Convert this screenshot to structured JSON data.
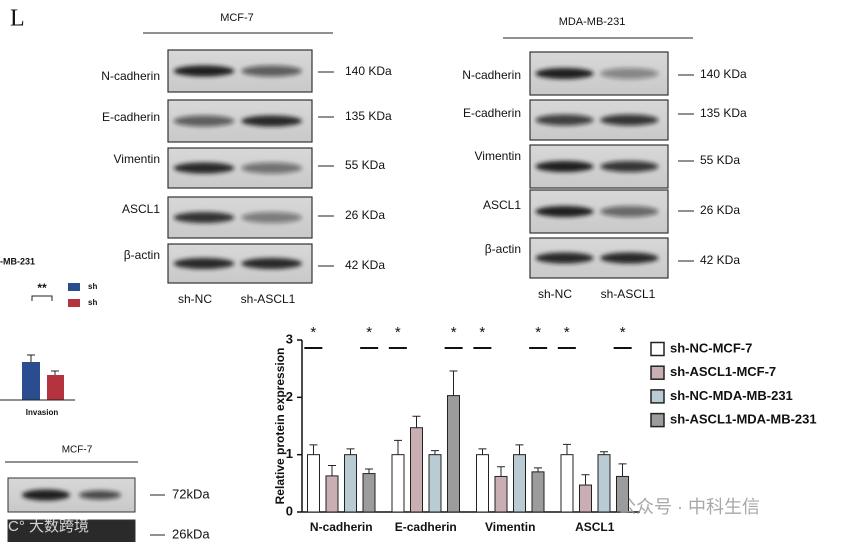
{
  "panel_letter": "L",
  "blots": [
    {
      "title": "MCF-7",
      "rows": [
        {
          "label": "N-cadherin",
          "size": "140 KDa"
        },
        {
          "label": "E-cadherin",
          "size": "135 KDa"
        },
        {
          "label": "Vimentin",
          "size": "55 KDa"
        },
        {
          "label": "ASCL1",
          "size": "26 KDa"
        },
        {
          "label": "β-actin",
          "size": "42 KDa"
        }
      ],
      "lanes": [
        "sh-NC",
        "sh-ASCL1"
      ]
    },
    {
      "title": "MDA-MB-231",
      "rows": [
        {
          "label": "N-cadherin",
          "size": "140 KDa"
        },
        {
          "label": "E-cadherin",
          "size": "135 KDa"
        },
        {
          "label": "Vimentin",
          "size": "55 KDa"
        },
        {
          "label": "ASCL1",
          "size": "26 KDa"
        },
        {
          "label": "β-actin",
          "size": "42 KDa"
        }
      ],
      "lanes": [
        "sh-NC",
        "sh-ASCL1"
      ]
    }
  ],
  "left_panel": {
    "title": "-MB-231",
    "significance": "**",
    "legend": [
      "sh",
      "sh"
    ],
    "xlabel": "Invasion",
    "blot_title": "MCF-7",
    "sizes": [
      "72kDa",
      "26kDa"
    ]
  },
  "watermarks": [
    "公众号 · 中科生信",
    "C° 大数跨境"
  ],
  "chart_data": {
    "type": "bar",
    "ylabel": "Relative protein expression",
    "categories": [
      "N-cadherin",
      "E-cadherin",
      "Vimentin",
      "ASCL1"
    ],
    "series": [
      {
        "name": "sh-NC-MCF-7",
        "color": "#ffffff",
        "values": [
          1,
          1,
          1,
          1
        ],
        "errors": [
          0.17,
          0.25,
          0.1,
          0.18
        ]
      },
      {
        "name": "sh-ASCL1-MCF-7",
        "color": "#c9aeb3",
        "values": [
          0.63,
          1.47,
          0.62,
          0.47
        ],
        "errors": [
          0.18,
          0.2,
          0.17,
          0.18
        ]
      },
      {
        "name": "sh-NC-MDA-MB-231",
        "color": "#b9cbd3",
        "values": [
          1,
          1,
          1,
          1
        ],
        "errors": [
          0.1,
          0.07,
          0.17,
          0.05
        ]
      },
      {
        "name": "sh-ASCL1-MDA-MB-231",
        "color": "#9c9c9c",
        "values": [
          0.67,
          2.03,
          0.7,
          0.62
        ],
        "errors": [
          0.08,
          0.43,
          0.07,
          0.22
        ]
      }
    ],
    "significance": [
      "*",
      "*",
      "*",
      "*",
      "*",
      "*",
      "*",
      "*"
    ],
    "ylim": [
      0,
      3
    ],
    "yticks": [
      0,
      1,
      2,
      3
    ]
  }
}
